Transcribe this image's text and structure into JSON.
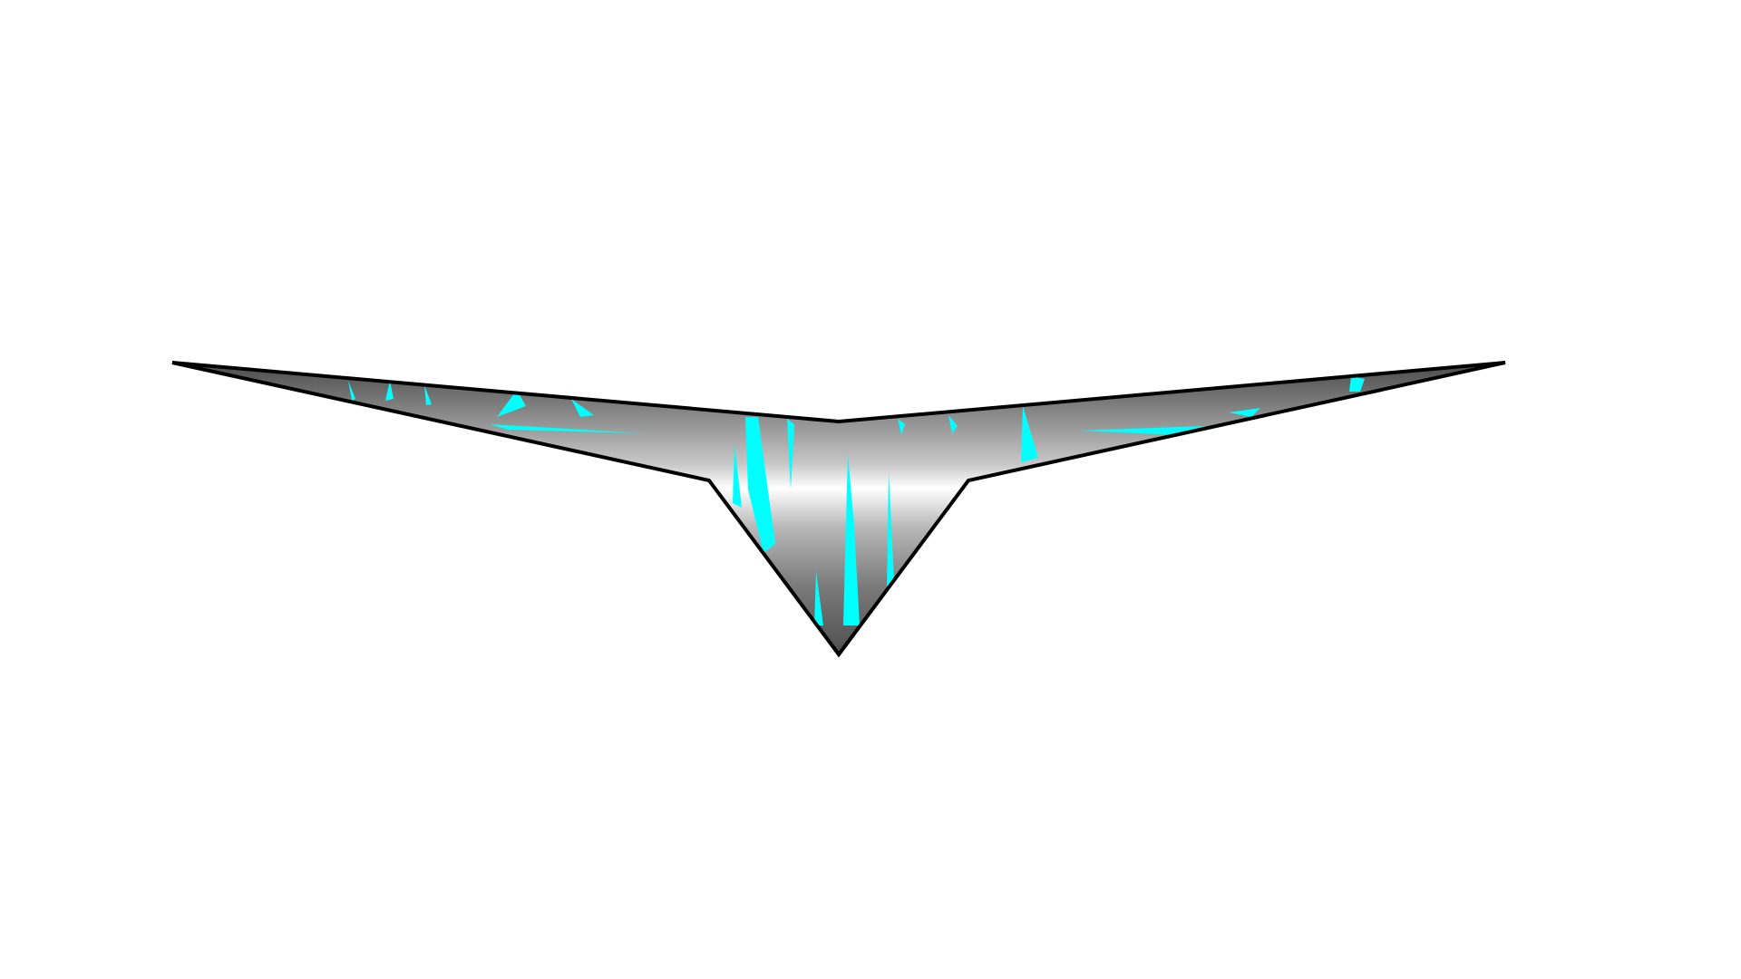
{
  "scene": {
    "background_color": "#ffffff",
    "subject": "emblem-shape",
    "colors": {
      "outline": "#000000",
      "metal_dark": "#4a4a4a",
      "metal_mid": "#a8a8a8",
      "metal_light": "#ffffff",
      "accent": "#00ffff"
    }
  }
}
